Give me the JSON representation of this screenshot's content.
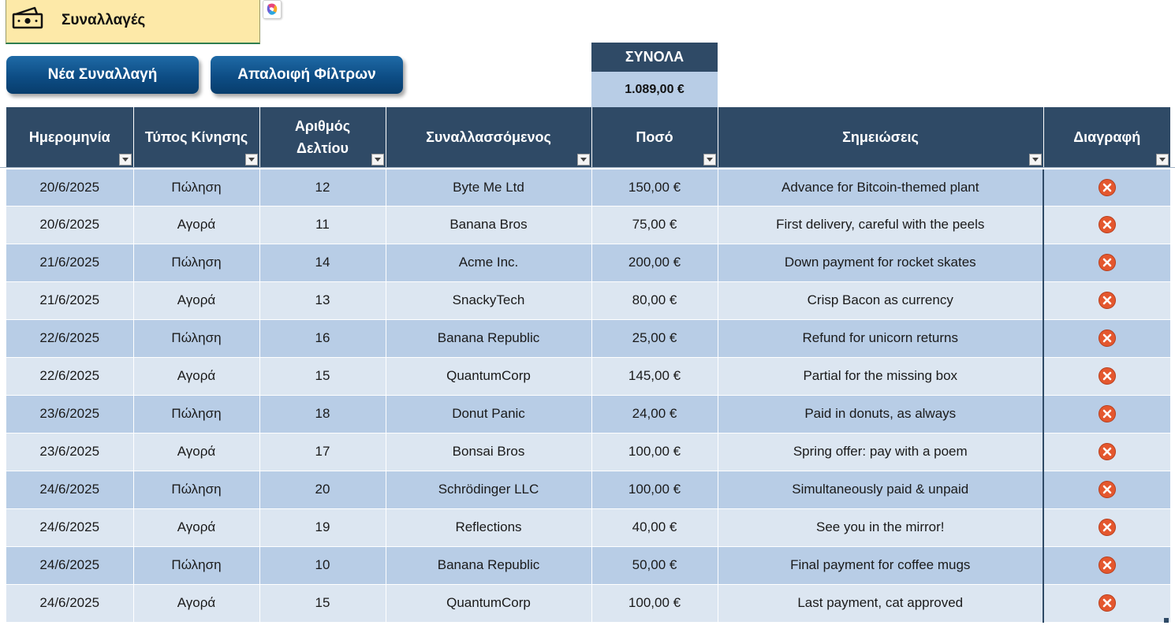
{
  "title": {
    "text": "Συναλλαγές",
    "icon": "money-bill-icon"
  },
  "buttons": {
    "new_transaction": "Νέα Συναλλαγή",
    "clear_filters": "Απαλοιφή Φίλτρων"
  },
  "totals": {
    "label": "ΣΥΝΟΛΑ",
    "value": "1.089,00 €"
  },
  "colors": {
    "header": "#2f4a66",
    "row_odd": "#b8cde6",
    "row_even": "#dce6f1",
    "title_bg": "#fde9a8",
    "delete": "#e4572e"
  },
  "table": {
    "headers": {
      "date": "Ημερομηνία",
      "type": "Τύπος Κίνησης",
      "receipt_line1": "Αριθμός",
      "receipt_line2": "Δελτίου",
      "party": "Συναλλασσόμενος",
      "amount": "Ποσό",
      "notes": "Σημειώσεις",
      "delete": "Διαγραφή"
    },
    "rows": [
      {
        "date": "20/6/2025",
        "type": "Πώληση",
        "receipt": "12",
        "party": "Byte Me Ltd",
        "amount": "150,00 €",
        "notes": "Advance for Bitcoin-themed plant"
      },
      {
        "date": "20/6/2025",
        "type": "Αγορά",
        "receipt": "11",
        "party": "Banana Bros",
        "amount": "75,00 €",
        "notes": "First delivery, careful with the peels"
      },
      {
        "date": "21/6/2025",
        "type": "Πώληση",
        "receipt": "14",
        "party": "Acme Inc.",
        "amount": "200,00 €",
        "notes": "Down payment for rocket skates"
      },
      {
        "date": "21/6/2025",
        "type": "Αγορά",
        "receipt": "13",
        "party": "SnackyTech",
        "amount": "80,00 €",
        "notes": "Crisp Bacon as currency"
      },
      {
        "date": "22/6/2025",
        "type": "Πώληση",
        "receipt": "16",
        "party": "Banana Republic",
        "amount": "25,00 €",
        "notes": "Refund for unicorn returns"
      },
      {
        "date": "22/6/2025",
        "type": "Αγορά",
        "receipt": "15",
        "party": "QuantumCorp",
        "amount": "145,00 €",
        "notes": "Partial for the missing box"
      },
      {
        "date": "23/6/2025",
        "type": "Πώληση",
        "receipt": "18",
        "party": "Donut Panic",
        "amount": "24,00 €",
        "notes": "Paid in donuts, as always"
      },
      {
        "date": "23/6/2025",
        "type": "Αγορά",
        "receipt": "17",
        "party": "Bonsai Bros",
        "amount": "100,00 €",
        "notes": "Spring offer: pay with a poem"
      },
      {
        "date": "24/6/2025",
        "type": "Πώληση",
        "receipt": "20",
        "party": "Schrödinger LLC",
        "amount": "100,00 €",
        "notes": "Simultaneously paid & unpaid"
      },
      {
        "date": "24/6/2025",
        "type": "Αγορά",
        "receipt": "19",
        "party": "Reflections",
        "amount": "40,00 €",
        "notes": "See you in the mirror!"
      },
      {
        "date": "24/6/2025",
        "type": "Πώληση",
        "receipt": "10",
        "party": "Banana Republic",
        "amount": "50,00 €",
        "notes": "Final payment for coffee mugs"
      },
      {
        "date": "24/6/2025",
        "type": "Αγορά",
        "receipt": "15",
        "party": "QuantumCorp",
        "amount": "100,00 €",
        "notes": "Last payment, cat approved"
      }
    ]
  }
}
